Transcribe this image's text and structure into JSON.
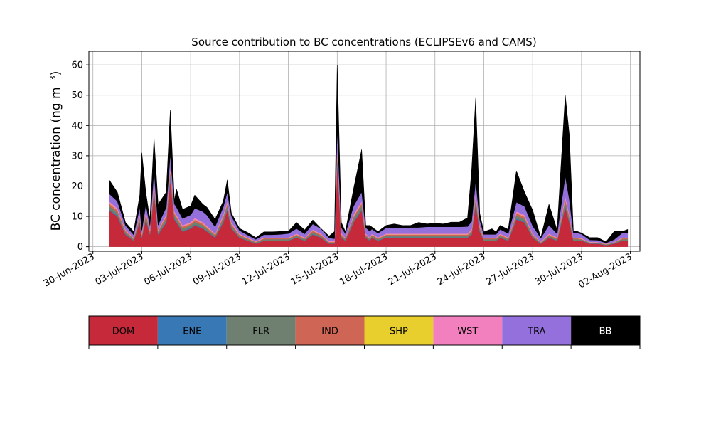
{
  "chart_data": {
    "type": "area",
    "stacked": true,
    "title": "Source contribution to BC concentrations (ECLIPSEv6 and CAMS)",
    "ylabel_text": "BC concentration (ng m",
    "ylabel_sup": "−3",
    "ylabel_close": ")",
    "xlim": [
      "2023-06-29T18:00",
      "2023-08-02T14:00"
    ],
    "ylim": [
      -1.5,
      64.5
    ],
    "yticks": [
      0,
      10,
      20,
      30,
      40,
      50,
      60
    ],
    "xticks": [
      {
        "date": "2023-06-30",
        "label": "30-Jun-2023"
      },
      {
        "date": "2023-07-03",
        "label": "03-Jul-2023"
      },
      {
        "date": "2023-07-06",
        "label": "06-Jul-2023"
      },
      {
        "date": "2023-07-09",
        "label": "09-Jul-2023"
      },
      {
        "date": "2023-07-12",
        "label": "12-Jul-2023"
      },
      {
        "date": "2023-07-15",
        "label": "15-Jul-2023"
      },
      {
        "date": "2023-07-18",
        "label": "18-Jul-2023"
      },
      {
        "date": "2023-07-21",
        "label": "21-Jul-2023"
      },
      {
        "date": "2023-07-24",
        "label": "24-Jul-2023"
      },
      {
        "date": "2023-07-27",
        "label": "27-Jul-2023"
      },
      {
        "date": "2023-07-30",
        "label": "30-Jul-2023"
      },
      {
        "date": "2023-08-02",
        "label": "02-Aug-2023"
      }
    ],
    "grid": true,
    "legend_placement": "bottom",
    "x": [
      "2023-07-01T00:00",
      "2023-07-01T12:00",
      "2023-07-02T00:00",
      "2023-07-02T12:00",
      "2023-07-02T21:00",
      "2023-07-03T00:00",
      "2023-07-03T06:00",
      "2023-07-03T12:00",
      "2023-07-03T18:00",
      "2023-07-04T00:00",
      "2023-07-04T12:00",
      "2023-07-04T18:00",
      "2023-07-05T00:00",
      "2023-07-05T03:00",
      "2023-07-05T12:00",
      "2023-07-06T00:00",
      "2023-07-06T06:00",
      "2023-07-06T18:00",
      "2023-07-07T00:00",
      "2023-07-07T12:00",
      "2023-07-08T00:00",
      "2023-07-08T06:00",
      "2023-07-08T12:00",
      "2023-07-09T00:00",
      "2023-07-09T12:00",
      "2023-07-10T00:00",
      "2023-07-10T12:00",
      "2023-07-11T00:00",
      "2023-07-11T12:00",
      "2023-07-12T00:00",
      "2023-07-12T12:00",
      "2023-07-13T00:00",
      "2023-07-13T12:00",
      "2023-07-14T00:00",
      "2023-07-14T12:00",
      "2023-07-14T20:00",
      "2023-07-15T00:00",
      "2023-07-15T06:00",
      "2023-07-15T12:00",
      "2023-07-16T00:00",
      "2023-07-16T12:00",
      "2023-07-16T18:00",
      "2023-07-17T00:00",
      "2023-07-17T03:00",
      "2023-07-17T12:00",
      "2023-07-18T00:00",
      "2023-07-18T12:00",
      "2023-07-19T00:00",
      "2023-07-19T12:00",
      "2023-07-20T00:00",
      "2023-07-20T12:00",
      "2023-07-21T00:00",
      "2023-07-21T12:00",
      "2023-07-22T00:00",
      "2023-07-22T12:00",
      "2023-07-23T00:00",
      "2023-07-23T06:00",
      "2023-07-23T12:00",
      "2023-07-23T18:00",
      "2023-07-24T00:00",
      "2023-07-24T12:00",
      "2023-07-24T18:00",
      "2023-07-25T00:00",
      "2023-07-25T12:00",
      "2023-07-26T00:00",
      "2023-07-26T12:00",
      "2023-07-27T00:00",
      "2023-07-27T12:00",
      "2023-07-28T00:00",
      "2023-07-28T12:00",
      "2023-07-29T00:00",
      "2023-07-29T06:00",
      "2023-07-29T12:00",
      "2023-07-29T18:00",
      "2023-07-30T00:00",
      "2023-07-30T12:00",
      "2023-07-31T00:00",
      "2023-07-31T12:00",
      "2023-08-01T00:00",
      "2023-08-01T12:00",
      "2023-08-01T20:00"
    ],
    "series": [
      {
        "name": "DOM",
        "color": "#c62a3a",
        "values": [
          12,
          10,
          4,
          2,
          8,
          3,
          9,
          4,
          18,
          4,
          8,
          22,
          9,
          8,
          5,
          6,
          7,
          6,
          5,
          3,
          8,
          12,
          6,
          3,
          2,
          1,
          2,
          2,
          2,
          2,
          3,
          2,
          4,
          3,
          1,
          1,
          28,
          3,
          2,
          8,
          12,
          3,
          2,
          3,
          2,
          3,
          3,
          3,
          3,
          3,
          3,
          3,
          3,
          3,
          3,
          3,
          4,
          14,
          5,
          2,
          2,
          2,
          3,
          2,
          9,
          8,
          3,
          1,
          3,
          2,
          13,
          8,
          2,
          2,
          2,
          1,
          1,
          0.5,
          1,
          2,
          2
        ]
      },
      {
        "name": "ENE",
        "color": "#3878b5",
        "values": [
          0.3,
          0.3,
          0.2,
          0.1,
          0.3,
          0.2,
          0.3,
          0.2,
          0.4,
          0.2,
          0.3,
          0.5,
          0.3,
          0.3,
          0.2,
          0.2,
          0.3,
          0.2,
          0.2,
          0.1,
          0.3,
          0.3,
          0.2,
          0.1,
          0.1,
          0.1,
          0.1,
          0.1,
          0.1,
          0.1,
          0.1,
          0.1,
          0.2,
          0.1,
          0.1,
          0.1,
          0.5,
          0.2,
          0.1,
          0.3,
          0.4,
          0.1,
          0.1,
          0.1,
          0.1,
          0.1,
          0.1,
          0.1,
          0.1,
          0.1,
          0.1,
          0.1,
          0.1,
          0.1,
          0.1,
          0.1,
          0.2,
          0.4,
          0.2,
          0.1,
          0.1,
          0.1,
          0.1,
          0.1,
          0.3,
          0.3,
          0.1,
          0.1,
          0.1,
          0.1,
          0.4,
          0.3,
          0.1,
          0.1,
          0.1,
          0.1,
          0.1,
          0.1,
          0.1,
          0.1,
          0.1
        ]
      },
      {
        "name": "FLR",
        "color": "#6f8070",
        "values": [
          1.2,
          1,
          0.6,
          0.4,
          1,
          0.5,
          1,
          0.6,
          1.5,
          0.6,
          1,
          1.8,
          1,
          1,
          0.8,
          0.8,
          0.9,
          0.8,
          0.7,
          0.5,
          1,
          1.2,
          0.8,
          0.5,
          0.4,
          0.3,
          0.4,
          0.4,
          0.4,
          0.4,
          0.5,
          0.4,
          0.6,
          0.5,
          0.3,
          0.3,
          2,
          0.5,
          0.4,
          1,
          1.2,
          0.5,
          0.4,
          0.5,
          0.4,
          0.5,
          0.5,
          0.5,
          0.5,
          0.5,
          0.5,
          0.5,
          0.5,
          0.5,
          0.5,
          0.5,
          0.6,
          1.5,
          0.7,
          0.4,
          0.4,
          0.4,
          0.5,
          0.4,
          1,
          0.9,
          0.5,
          0.2,
          0.5,
          0.4,
          1.4,
          1,
          0.4,
          0.4,
          0.3,
          0.2,
          0.2,
          0.1,
          0.2,
          0.4,
          0.4
        ]
      },
      {
        "name": "IND",
        "color": "#cf6554",
        "values": [
          0.8,
          0.8,
          0.5,
          0.3,
          0.7,
          0.4,
          0.8,
          0.5,
          1,
          0.5,
          0.8,
          1.2,
          0.8,
          0.7,
          0.6,
          0.6,
          0.7,
          0.6,
          0.5,
          0.4,
          0.7,
          0.8,
          0.6,
          0.4,
          0.3,
          0.2,
          0.3,
          0.3,
          0.3,
          0.3,
          0.4,
          0.3,
          0.5,
          0.4,
          0.2,
          0.2,
          1.4,
          0.4,
          0.3,
          0.7,
          0.8,
          0.4,
          0.3,
          0.4,
          0.3,
          0.4,
          0.4,
          0.4,
          0.4,
          0.4,
          0.4,
          0.4,
          0.4,
          0.4,
          0.4,
          0.4,
          0.5,
          1,
          0.5,
          0.3,
          0.3,
          0.3,
          0.4,
          0.3,
          0.8,
          0.7,
          0.4,
          0.2,
          0.4,
          0.3,
          1,
          0.8,
          0.3,
          0.3,
          0.2,
          0.1,
          0.1,
          0.1,
          0.1,
          0.3,
          0.3
        ]
      },
      {
        "name": "SHP",
        "color": "#e8cf2e",
        "values": [
          0.1,
          0.1,
          0.1,
          0.05,
          0.1,
          0.05,
          0.1,
          0.1,
          0.2,
          0.1,
          0.1,
          0.2,
          0.1,
          0.1,
          0.1,
          0.1,
          0.1,
          0.1,
          0.1,
          0.05,
          0.1,
          0.1,
          0.1,
          0.05,
          0.05,
          0.05,
          0.05,
          0.05,
          0.05,
          0.05,
          0.05,
          0.05,
          0.1,
          0.05,
          0.05,
          0.05,
          0.2,
          0.1,
          0.05,
          0.1,
          0.1,
          0.05,
          0.05,
          0.05,
          0.05,
          0.05,
          0.05,
          0.05,
          0.05,
          0.05,
          0.05,
          0.05,
          0.05,
          0.05,
          0.05,
          0.05,
          0.1,
          0.2,
          0.1,
          0.05,
          0.05,
          0.05,
          0.05,
          0.05,
          0.1,
          0.1,
          0.05,
          0.05,
          0.05,
          0.05,
          0.2,
          0.1,
          0.05,
          0.05,
          0.05,
          0.05,
          0.05,
          0.05,
          0.05,
          0.05,
          0.05
        ]
      },
      {
        "name": "WST",
        "color": "#f280be",
        "values": [
          0.6,
          0.5,
          0.3,
          0.2,
          0.5,
          0.3,
          0.5,
          0.3,
          0.8,
          0.3,
          0.5,
          0.9,
          0.5,
          0.5,
          0.4,
          0.4,
          0.5,
          0.4,
          0.4,
          0.3,
          0.5,
          0.6,
          0.4,
          0.3,
          0.2,
          0.2,
          0.2,
          0.2,
          0.2,
          0.2,
          0.3,
          0.2,
          0.3,
          0.3,
          0.2,
          0.2,
          1,
          0.3,
          0.2,
          0.5,
          0.6,
          0.3,
          0.2,
          0.3,
          0.2,
          0.3,
          0.3,
          0.3,
          0.3,
          0.3,
          0.3,
          0.3,
          0.3,
          0.3,
          0.3,
          0.3,
          0.4,
          0.8,
          0.4,
          0.2,
          0.2,
          0.2,
          0.3,
          0.2,
          0.5,
          0.5,
          0.3,
          0.1,
          0.3,
          0.2,
          0.8,
          0.5,
          0.2,
          0.2,
          0.2,
          0.1,
          0.1,
          0.1,
          0.1,
          0.2,
          0.2
        ]
      },
      {
        "name": "TRA",
        "color": "#9370db",
        "values": [
          2.5,
          2.3,
          1.3,
          0.9,
          2.4,
          1,
          2.3,
          1.3,
          3.5,
          1.5,
          2.3,
          4,
          2.4,
          2.5,
          2.2,
          2.4,
          3.2,
          3.5,
          3.5,
          2.2,
          2.5,
          3,
          2,
          1,
          0.8,
          0.6,
          0.9,
          0.9,
          1,
          1.3,
          1.6,
          1.2,
          1.8,
          1.6,
          1,
          0.8,
          6,
          1.8,
          1.3,
          2.8,
          3,
          2,
          2,
          1.5,
          1.4,
          1.8,
          1.8,
          1.8,
          2,
          2,
          2.2,
          2.2,
          2.2,
          2.2,
          2.2,
          2.3,
          2.5,
          4,
          2,
          1,
          1,
          1,
          1.4,
          1.3,
          3,
          2.8,
          2.5,
          1.2,
          2.8,
          1.2,
          6.5,
          5,
          1.5,
          1.5,
          1.3,
          0.7,
          0.6,
          0.3,
          0.8,
          1.5,
          1.4
        ]
      },
      {
        "name": "BB",
        "color": "#000000",
        "values": [
          4.5,
          3,
          1,
          1,
          4,
          25.5,
          3.8,
          2,
          10.6,
          6.8,
          5,
          14.4,
          1,
          6,
          3,
          3,
          4.3,
          2.4,
          2.6,
          2.45,
          1.9,
          4,
          1,
          0.65,
          0.85,
          0.55,
          0.95,
          0.95,
          0.95,
          0.75,
          2.05,
          1.25,
          1.3,
          0.05,
          0.65,
          2.35,
          20.9,
          1.7,
          0.65,
          5.6,
          13.9,
          0.65,
          1.95,
          0.65,
          0.55,
          0.85,
          1.35,
          0.85,
          0.65,
          1.65,
          0.95,
          1.15,
          0.95,
          1.55,
          1.55,
          2.85,
          16.7,
          27.1,
          2.1,
          0.85,
          1.85,
          0.85,
          1.25,
          1.35,
          10.3,
          4.7,
          5.15,
          0.15,
          6.85,
          1.25,
          26.7,
          21.2,
          0.45,
          0.45,
          0.35,
          0.75,
          0.85,
          0.35,
          2.65,
          0.45,
          1.25
        ]
      }
    ],
    "legend": [
      {
        "name": "DOM",
        "color": "#c62a3a",
        "text_color": "#000000"
      },
      {
        "name": "ENE",
        "color": "#3878b5",
        "text_color": "#000000"
      },
      {
        "name": "FLR",
        "color": "#6f8070",
        "text_color": "#000000"
      },
      {
        "name": "IND",
        "color": "#cf6554",
        "text_color": "#000000"
      },
      {
        "name": "SHP",
        "color": "#e8cf2e",
        "text_color": "#000000"
      },
      {
        "name": "WST",
        "color": "#f280be",
        "text_color": "#000000"
      },
      {
        "name": "TRA",
        "color": "#9370db",
        "text_color": "#000000"
      },
      {
        "name": "BB",
        "color": "#000000",
        "text_color": "#ffffff"
      }
    ],
    "grid_color": "#b0b0b0"
  }
}
